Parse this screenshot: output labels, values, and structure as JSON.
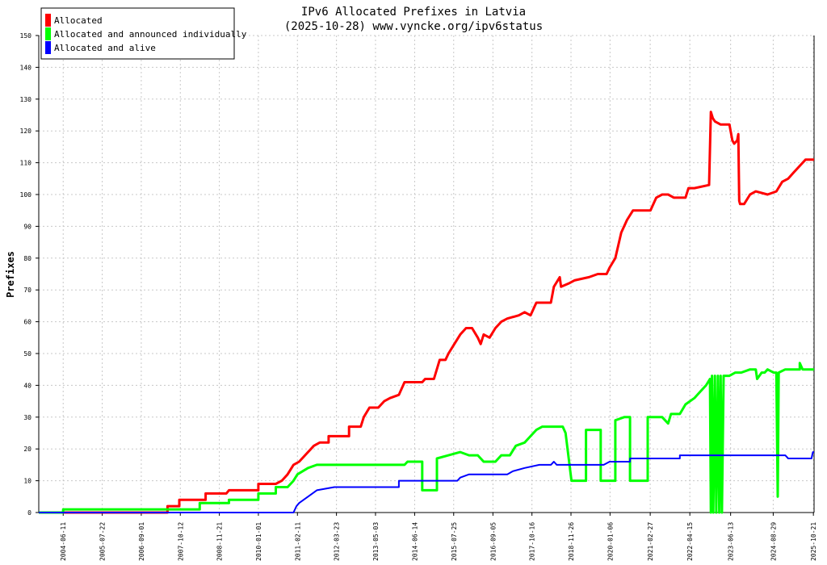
{
  "chart_data": {
    "type": "line",
    "title": "IPv6 Allocated Prefixes in Latvia",
    "subtitle": "(2025-10-28) www.vyncke.org/ipv6status",
    "xlabel": "",
    "ylabel": "Prefixes",
    "xlim": [
      "2003-10-01",
      "2025-10-28"
    ],
    "ylim": [
      0,
      150
    ],
    "grid": true,
    "legend_position": "top-left",
    "x_ticks": [
      "2004-06-11",
      "2005-07-22",
      "2006-09-01",
      "2007-10-12",
      "2008-11-21",
      "2010-01-01",
      "2011-02-11",
      "2012-03-23",
      "2013-05-03",
      "2014-06-14",
      "2015-07-25",
      "2016-09-05",
      "2017-10-16",
      "2018-11-26",
      "2020-01-06",
      "2021-02-27",
      "2022-04-15",
      "2023-06-13",
      "2024-08-29",
      "2025-10-21"
    ],
    "y_ticks": [
      0,
      10,
      20,
      30,
      40,
      50,
      60,
      70,
      80,
      90,
      100,
      110,
      120,
      130,
      140,
      150
    ],
    "series": [
      {
        "name": "Allocated",
        "color": "#ff0000",
        "points": [
          [
            "2003-10-01",
            0
          ],
          [
            "2007-06-01",
            0
          ],
          [
            "2007-06-01",
            2
          ],
          [
            "2007-10-01",
            2
          ],
          [
            "2007-10-01",
            4
          ],
          [
            "2008-07-01",
            4
          ],
          [
            "2008-07-01",
            6
          ],
          [
            "2009-02-01",
            6
          ],
          [
            "2009-03-01",
            7
          ],
          [
            "2010-01-01",
            7
          ],
          [
            "2010-01-01",
            9
          ],
          [
            "2010-07-01",
            9
          ],
          [
            "2010-09-01",
            10
          ],
          [
            "2010-11-01",
            12
          ],
          [
            "2011-01-01",
            15
          ],
          [
            "2011-03-01",
            16
          ],
          [
            "2011-05-01",
            18
          ],
          [
            "2011-08-01",
            21
          ],
          [
            "2011-10-01",
            22
          ],
          [
            "2012-01-01",
            22
          ],
          [
            "2012-01-01",
            24
          ],
          [
            "2012-08-01",
            24
          ],
          [
            "2012-08-01",
            27
          ],
          [
            "2012-12-01",
            27
          ],
          [
            "2013-01-01",
            30
          ],
          [
            "2013-03-01",
            33
          ],
          [
            "2013-06-01",
            33
          ],
          [
            "2013-08-01",
            35
          ],
          [
            "2013-10-01",
            36
          ],
          [
            "2014-01-01",
            37
          ],
          [
            "2014-03-01",
            41
          ],
          [
            "2014-09-01",
            41
          ],
          [
            "2014-10-01",
            42
          ],
          [
            "2015-01-01",
            42
          ],
          [
            "2015-03-01",
            48
          ],
          [
            "2015-05-01",
            48
          ],
          [
            "2015-06-01",
            50
          ],
          [
            "2015-08-01",
            53
          ],
          [
            "2015-10-01",
            56
          ],
          [
            "2015-12-01",
            58
          ],
          [
            "2016-02-01",
            58
          ],
          [
            "2016-04-01",
            55
          ],
          [
            "2016-05-01",
            53
          ],
          [
            "2016-06-01",
            56
          ],
          [
            "2016-08-01",
            55
          ],
          [
            "2016-10-01",
            58
          ],
          [
            "2016-12-01",
            60
          ],
          [
            "2017-02-01",
            61
          ],
          [
            "2017-06-01",
            62
          ],
          [
            "2017-08-01",
            63
          ],
          [
            "2017-10-01",
            62
          ],
          [
            "2017-12-01",
            66
          ],
          [
            "2018-05-01",
            66
          ],
          [
            "2018-06-01",
            71
          ],
          [
            "2018-08-01",
            74
          ],
          [
            "2018-08-15",
            71
          ],
          [
            "2018-11-01",
            72
          ],
          [
            "2019-01-01",
            73
          ],
          [
            "2019-06-01",
            74
          ],
          [
            "2019-09-01",
            75
          ],
          [
            "2019-12-01",
            75
          ],
          [
            "2020-01-01",
            77
          ],
          [
            "2020-03-01",
            80
          ],
          [
            "2020-05-01",
            88
          ],
          [
            "2020-07-01",
            92
          ],
          [
            "2020-09-01",
            95
          ],
          [
            "2021-03-01",
            95
          ],
          [
            "2021-05-01",
            99
          ],
          [
            "2021-07-01",
            100
          ],
          [
            "2021-09-01",
            100
          ],
          [
            "2021-11-01",
            99
          ],
          [
            "2022-03-01",
            99
          ],
          [
            "2022-04-01",
            102
          ],
          [
            "2022-06-01",
            102
          ],
          [
            "2022-11-01",
            103
          ],
          [
            "2022-11-20",
            126
          ],
          [
            "2022-12-10",
            124
          ],
          [
            "2023-01-01",
            123
          ],
          [
            "2023-03-01",
            122
          ],
          [
            "2023-06-01",
            122
          ],
          [
            "2023-07-01",
            117
          ],
          [
            "2023-07-20",
            116
          ],
          [
            "2023-08-20",
            117
          ],
          [
            "2023-09-01",
            119
          ],
          [
            "2023-09-10",
            98
          ],
          [
            "2023-09-20",
            97
          ],
          [
            "2023-11-01",
            97
          ],
          [
            "2024-01-01",
            100
          ],
          [
            "2024-03-01",
            101
          ],
          [
            "2024-07-01",
            100
          ],
          [
            "2024-10-01",
            101
          ],
          [
            "2024-12-01",
            104
          ],
          [
            "2025-02-01",
            105
          ],
          [
            "2025-04-01",
            107
          ],
          [
            "2025-05-01",
            108
          ],
          [
            "2025-06-01",
            109
          ],
          [
            "2025-08-01",
            111
          ],
          [
            "2025-10-28",
            111
          ]
        ]
      },
      {
        "name": "Allocated and announced individually",
        "color": "#00ff00",
        "points": [
          [
            "2003-10-01",
            0
          ],
          [
            "2004-06-11",
            0
          ],
          [
            "2004-06-11",
            1
          ],
          [
            "2008-05-01",
            1
          ],
          [
            "2008-05-01",
            3
          ],
          [
            "2009-03-01",
            3
          ],
          [
            "2009-03-01",
            4
          ],
          [
            "2010-01-01",
            4
          ],
          [
            "2010-01-01",
            6
          ],
          [
            "2010-07-01",
            6
          ],
          [
            "2010-07-01",
            8
          ],
          [
            "2010-11-01",
            8
          ],
          [
            "2011-01-01",
            10
          ],
          [
            "2011-02-11",
            12
          ],
          [
            "2011-06-01",
            14
          ],
          [
            "2011-09-01",
            15
          ],
          [
            "2014-03-01",
            15
          ],
          [
            "2014-04-01",
            16
          ],
          [
            "2014-09-01",
            16
          ],
          [
            "2014-09-01",
            7
          ],
          [
            "2015-02-01",
            7
          ],
          [
            "2015-02-01",
            17
          ],
          [
            "2015-06-01",
            18
          ],
          [
            "2015-10-01",
            19
          ],
          [
            "2016-01-01",
            18
          ],
          [
            "2016-04-01",
            18
          ],
          [
            "2016-06-01",
            16
          ],
          [
            "2016-10-01",
            16
          ],
          [
            "2016-12-01",
            18
          ],
          [
            "2017-03-01",
            18
          ],
          [
            "2017-05-01",
            21
          ],
          [
            "2017-08-01",
            22
          ],
          [
            "2017-10-01",
            24
          ],
          [
            "2017-12-01",
            26
          ],
          [
            "2018-02-01",
            27
          ],
          [
            "2018-06-01",
            27
          ],
          [
            "2018-09-01",
            27
          ],
          [
            "2018-10-01",
            25
          ],
          [
            "2018-12-01",
            10
          ],
          [
            "2019-05-01",
            10
          ],
          [
            "2019-05-01",
            26
          ],
          [
            "2019-10-01",
            26
          ],
          [
            "2019-10-01",
            10
          ],
          [
            "2020-03-01",
            10
          ],
          [
            "2020-03-01",
            29
          ],
          [
            "2020-06-01",
            30
          ],
          [
            "2020-08-01",
            30
          ],
          [
            "2020-08-01",
            10
          ],
          [
            "2021-02-01",
            10
          ],
          [
            "2021-02-01",
            30
          ],
          [
            "2021-07-01",
            30
          ],
          [
            "2021-09-01",
            28
          ],
          [
            "2021-10-01",
            31
          ],
          [
            "2022-01-01",
            31
          ],
          [
            "2022-03-01",
            34
          ],
          [
            "2022-06-01",
            36
          ],
          [
            "2022-08-01",
            38
          ],
          [
            "2022-10-01",
            40
          ],
          [
            "2022-11-10",
            42
          ],
          [
            "2022-11-20",
            0
          ],
          [
            "2022-12-01",
            43
          ],
          [
            "2022-12-15",
            0
          ],
          [
            "2023-01-01",
            43
          ],
          [
            "2023-01-15",
            0
          ],
          [
            "2023-02-01",
            43
          ],
          [
            "2023-02-15",
            0
          ],
          [
            "2023-03-01",
            43
          ],
          [
            "2023-03-15",
            0
          ],
          [
            "2023-04-01",
            43
          ],
          [
            "2023-06-01",
            43
          ],
          [
            "2023-08-01",
            44
          ],
          [
            "2023-10-01",
            44
          ],
          [
            "2024-01-01",
            45
          ],
          [
            "2024-03-01",
            45
          ],
          [
            "2024-03-15",
            42
          ],
          [
            "2024-05-01",
            44
          ],
          [
            "2024-06-01",
            44
          ],
          [
            "2024-07-01",
            45
          ],
          [
            "2024-09-01",
            44
          ],
          [
            "2024-10-01",
            44
          ],
          [
            "2024-10-15",
            5
          ],
          [
            "2024-10-25",
            44
          ],
          [
            "2025-01-01",
            45
          ],
          [
            "2025-06-01",
            45
          ],
          [
            "2025-06-01",
            47
          ],
          [
            "2025-07-01",
            45
          ],
          [
            "2025-09-01",
            45
          ],
          [
            "2025-10-28",
            45
          ]
        ]
      },
      {
        "name": "Allocated and alive",
        "color": "#0000ff",
        "points": [
          [
            "2003-10-01",
            0
          ],
          [
            "2011-01-01",
            0
          ],
          [
            "2011-02-01",
            2
          ],
          [
            "2011-03-01",
            3
          ],
          [
            "2011-06-01",
            5
          ],
          [
            "2011-09-01",
            7
          ],
          [
            "2012-03-01",
            8
          ],
          [
            "2014-01-01",
            8
          ],
          [
            "2014-01-01",
            10
          ],
          [
            "2015-09-01",
            10
          ],
          [
            "2015-10-01",
            11
          ],
          [
            "2016-01-01",
            12
          ],
          [
            "2017-02-01",
            12
          ],
          [
            "2017-04-01",
            13
          ],
          [
            "2017-08-01",
            14
          ],
          [
            "2018-01-01",
            15
          ],
          [
            "2018-05-01",
            15
          ],
          [
            "2018-06-01",
            16
          ],
          [
            "2018-07-01",
            15
          ],
          [
            "2019-11-01",
            15
          ],
          [
            "2020-01-01",
            16
          ],
          [
            "2020-08-01",
            16
          ],
          [
            "2020-08-01",
            17
          ],
          [
            "2022-01-01",
            17
          ],
          [
            "2022-01-01",
            18
          ],
          [
            "2025-01-01",
            18
          ],
          [
            "2025-02-01",
            17
          ],
          [
            "2025-10-01",
            17
          ],
          [
            "2025-10-15",
            19
          ],
          [
            "2025-10-28",
            19
          ]
        ]
      }
    ]
  }
}
